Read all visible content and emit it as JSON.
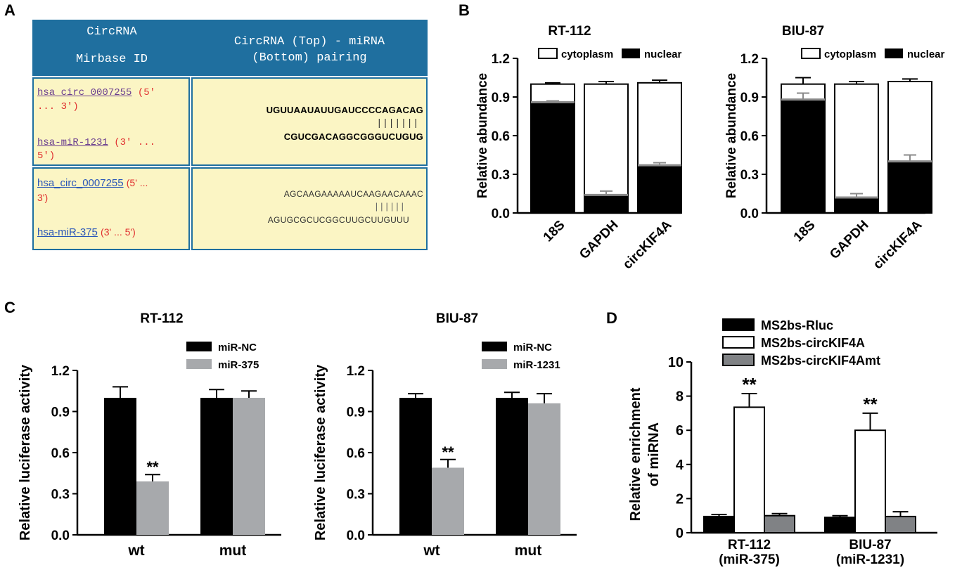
{
  "panels": {
    "a": "A",
    "b": "B",
    "c": "C",
    "d": "D"
  },
  "table": {
    "header_left_line1": "CircRNA",
    "header_left_line2": "Mirbase ID",
    "header_right_line1": "CircRNA (Top) - miRNA",
    "header_right_line2": "(Bottom) pairing",
    "header_color": "#1f6f9f",
    "cell_color": "#fbf5c4",
    "rows": [
      {
        "circ_id": "hsa_circ_0007255",
        "circ_orient_a": "(5'",
        "circ_orient_b": "... 3')",
        "mir_id": "hsa-miR-1231",
        "mir_orient_a": "(3' ...",
        "mir_orient_b": "5')",
        "top_seq": "UGUUAAUAUUGAUCCCCAGACAG",
        "pair_marks": "|||||||",
        "bottom_seq": "CGUCGACAGGCGGGUCUGUG"
      },
      {
        "circ_id": "hsa_circ_0007255",
        "circ_orient_a": "(5' ...",
        "circ_orient_b": "3')",
        "mir_id": "hsa-miR-375",
        "mir_orient_a": "(3' ... 5')",
        "top_seq": "AGCAAGAAAAAUCAAGAACAAAC",
        "pair_marks": "||||||",
        "bottom_seq": "AGUGCGCUCGGCUUGCUUGUUU"
      }
    ]
  },
  "chart_data": [
    {
      "panel": "B",
      "type": "bar",
      "stacked": true,
      "title": "RT-112",
      "ylabel": "Relative abundance",
      "categories": [
        "18S",
        "GAPDH",
        "circKIF4A"
      ],
      "series": [
        {
          "name": "cytoplasm",
          "color": "#ffffff",
          "values": [
            0.14,
            0.86,
            0.64
          ]
        },
        {
          "name": "nuclear",
          "color": "#000000",
          "values": [
            0.86,
            0.14,
            0.37
          ]
        }
      ],
      "totals": [
        1.0,
        1.0,
        1.01
      ],
      "errors": [
        0.01,
        0.02,
        0.02
      ],
      "nuclear_errors": [
        0.01,
        0.03,
        0.02
      ],
      "ylim": [
        0,
        1.2
      ],
      "yticks": [
        "0.0",
        "0.3",
        "0.6",
        "0.9",
        "1.2"
      ],
      "legend_position": "top"
    },
    {
      "panel": "B",
      "type": "bar",
      "stacked": true,
      "title": "BIU-87",
      "ylabel": "Relative abundance",
      "categories": [
        "18S",
        "GAPDH",
        "circKIF4A"
      ],
      "series": [
        {
          "name": "cytoplasm",
          "color": "#ffffff",
          "values": [
            0.12,
            0.88,
            0.62
          ]
        },
        {
          "name": "nuclear",
          "color": "#000000",
          "values": [
            0.88,
            0.12,
            0.4
          ]
        }
      ],
      "totals": [
        1.0,
        1.0,
        1.02
      ],
      "errors": [
        0.05,
        0.02,
        0.02
      ],
      "nuclear_errors": [
        0.05,
        0.03,
        0.05
      ],
      "ylim": [
        0,
        1.2
      ],
      "yticks": [
        "0.0",
        "0.3",
        "0.6",
        "0.9",
        "1.2"
      ],
      "legend_position": "top"
    },
    {
      "panel": "C",
      "type": "bar",
      "title": "RT-112",
      "ylabel": "Relative luciferase activity",
      "categories": [
        "wt",
        "mut"
      ],
      "series": [
        {
          "name": "miR-NC",
          "color": "#000000",
          "values": [
            1.0,
            1.0
          ],
          "errors": [
            0.08,
            0.06
          ]
        },
        {
          "name": "miR-375",
          "color": "#a7a9ac",
          "values": [
            0.39,
            1.0
          ],
          "errors": [
            0.05,
            0.05
          ]
        }
      ],
      "annotations": [
        {
          "category": "wt",
          "series": "miR-375",
          "text": "**"
        }
      ],
      "ylim": [
        0,
        1.2
      ],
      "yticks": [
        "0.0",
        "0.3",
        "0.6",
        "0.9",
        "1.2"
      ],
      "legend_position": "top-right"
    },
    {
      "panel": "C",
      "type": "bar",
      "title": "BIU-87",
      "ylabel": "Relative luciferase activity",
      "categories": [
        "wt",
        "mut"
      ],
      "series": [
        {
          "name": "miR-NC",
          "color": "#000000",
          "values": [
            1.0,
            1.0
          ],
          "errors": [
            0.03,
            0.04
          ]
        },
        {
          "name": "miR-1231",
          "color": "#a7a9ac",
          "values": [
            0.49,
            0.96
          ],
          "errors": [
            0.06,
            0.07
          ]
        }
      ],
      "annotations": [
        {
          "category": "wt",
          "series": "miR-1231",
          "text": "**"
        }
      ],
      "ylim": [
        0,
        1.2
      ],
      "yticks": [
        "0.0",
        "0.3",
        "0.6",
        "0.9",
        "1.2"
      ],
      "legend_position": "top-right"
    },
    {
      "panel": "D",
      "type": "bar",
      "title": "",
      "ylabel": "Relative enrichment of miRNA",
      "ylabel_line1": "Relative enrichment",
      "ylabel_line2": "of miRNA",
      "categories": [
        "RT-112 (miR-375)",
        "BIU-87 (miR-1231)"
      ],
      "category_line1": [
        "RT-112",
        "BIU-87"
      ],
      "category_line2": [
        "(miR-375)",
        "(miR-1231)"
      ],
      "series": [
        {
          "name": "MS2bs-Rluc",
          "color": "#000000",
          "values": [
            0.95,
            0.9
          ],
          "errors": [
            0.12,
            0.1
          ]
        },
        {
          "name": "MS2bs-circKIF4A",
          "color": "#ffffff",
          "values": [
            7.35,
            6.0
          ],
          "errors": [
            0.8,
            1.0
          ]
        },
        {
          "name": "MS2bs-circKIF4Amt",
          "color": "#808285",
          "values": [
            1.0,
            0.95
          ],
          "errors": [
            0.12,
            0.28
          ]
        }
      ],
      "annotations": [
        {
          "category": "RT-112 (miR-375)",
          "series": "MS2bs-circKIF4A",
          "text": "**"
        },
        {
          "category": "BIU-87 (miR-1231)",
          "series": "MS2bs-circKIF4A",
          "text": "**"
        }
      ],
      "ylim": [
        0,
        10
      ],
      "yticks": [
        "0",
        "2",
        "4",
        "6",
        "8",
        "10"
      ],
      "legend_position": "top"
    }
  ]
}
